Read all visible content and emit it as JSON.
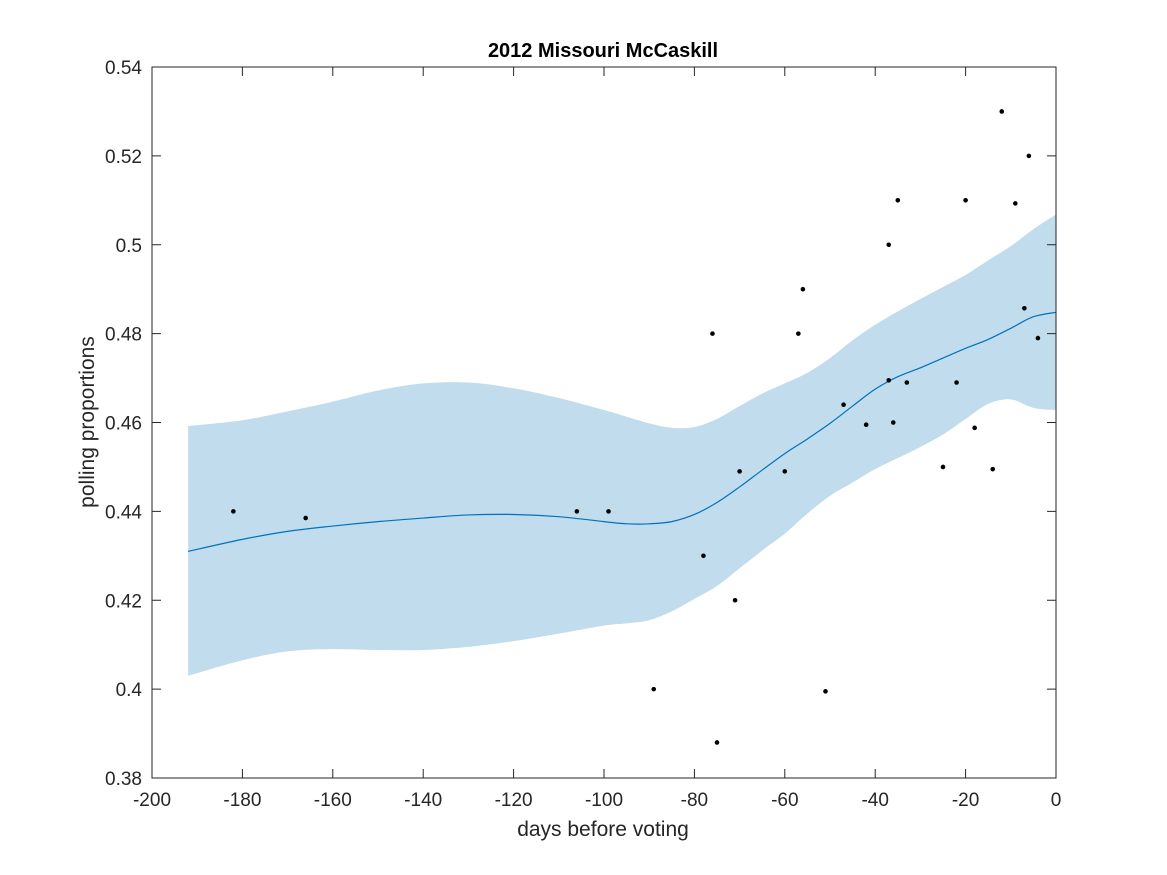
{
  "chart_data": {
    "type": "scatter",
    "title": "2012 Missouri McCaskill",
    "xlabel": "days before voting",
    "ylabel": "polling proportions",
    "xlim": [
      -200,
      0
    ],
    "ylim": [
      0.38,
      0.54
    ],
    "xticks": [
      -200,
      -180,
      -160,
      -140,
      -120,
      -100,
      -80,
      -60,
      -40,
      -20,
      0
    ],
    "yticks": [
      0.38,
      0.4,
      0.42,
      0.44,
      0.46,
      0.48,
      0.5,
      0.52,
      0.54
    ],
    "xtick_labels": [
      "-200",
      "-180",
      "-160",
      "-140",
      "-120",
      "-100",
      "-80",
      "-60",
      "-40",
      "-20",
      "0"
    ],
    "ytick_labels": [
      "0.38",
      "0.4",
      "0.42",
      "0.44",
      "0.46",
      "0.48",
      "0.5",
      "0.52",
      "0.54"
    ],
    "grid": false,
    "colors": {
      "band": "#c1dcec",
      "line": "#0072bd",
      "points": "#000000",
      "axes": "#262626"
    },
    "polls": [
      {
        "x": -182,
        "y": 0.44
      },
      {
        "x": -166,
        "y": 0.4385
      },
      {
        "x": -106,
        "y": 0.44
      },
      {
        "x": -99,
        "y": 0.44
      },
      {
        "x": -89,
        "y": 0.4
      },
      {
        "x": -78,
        "y": 0.43
      },
      {
        "x": -76,
        "y": 0.48
      },
      {
        "x": -75,
        "y": 0.388
      },
      {
        "x": -71,
        "y": 0.42
      },
      {
        "x": -70,
        "y": 0.449
      },
      {
        "x": -60,
        "y": 0.449
      },
      {
        "x": -57,
        "y": 0.48
      },
      {
        "x": -56,
        "y": 0.49
      },
      {
        "x": -51,
        "y": 0.3995
      },
      {
        "x": -47,
        "y": 0.464
      },
      {
        "x": -42,
        "y": 0.4595
      },
      {
        "x": -37,
        "y": 0.5
      },
      {
        "x": -37,
        "y": 0.4695
      },
      {
        "x": -36,
        "y": 0.46
      },
      {
        "x": -35,
        "y": 0.51
      },
      {
        "x": -33,
        "y": 0.469
      },
      {
        "x": -25,
        "y": 0.45
      },
      {
        "x": -22,
        "y": 0.469
      },
      {
        "x": -20,
        "y": 0.51
      },
      {
        "x": -18,
        "y": 0.4588
      },
      {
        "x": -14,
        "y": 0.4495
      },
      {
        "x": -12,
        "y": 0.53
      },
      {
        "x": -9,
        "y": 0.5093
      },
      {
        "x": -7,
        "y": 0.4857
      },
      {
        "x": -6,
        "y": 0.52
      },
      {
        "x": -4,
        "y": 0.479
      }
    ],
    "mean": {
      "x": [
        -192,
        -180,
        -170,
        -160,
        -150,
        -140,
        -130,
        -120,
        -110,
        -100,
        -95,
        -90,
        -85,
        -80,
        -75,
        -70,
        -65,
        -60,
        -55,
        -50,
        -45,
        -40,
        -35,
        -30,
        -25,
        -20,
        -15,
        -10,
        -5,
        0
      ],
      "y": [
        0.431,
        0.4337,
        0.4355,
        0.4367,
        0.4377,
        0.4385,
        0.4392,
        0.4393,
        0.4388,
        0.4377,
        0.4372,
        0.4372,
        0.4377,
        0.4393,
        0.442,
        0.4455,
        0.4493,
        0.453,
        0.4563,
        0.4598,
        0.4637,
        0.4675,
        0.4703,
        0.4723,
        0.4745,
        0.4767,
        0.4787,
        0.4812,
        0.4838,
        0.4848
      ]
    },
    "upper": {
      "x": [
        -192,
        -180,
        -170,
        -160,
        -150,
        -140,
        -130,
        -120,
        -110,
        -100,
        -95,
        -90,
        -85,
        -80,
        -75,
        -70,
        -65,
        -60,
        -55,
        -50,
        -45,
        -40,
        -35,
        -30,
        -25,
        -20,
        -15,
        -10,
        -5,
        0
      ],
      "y": [
        0.4592,
        0.4605,
        0.4625,
        0.4647,
        0.4672,
        0.4688,
        0.469,
        0.4677,
        0.4655,
        0.4628,
        0.4613,
        0.4598,
        0.4588,
        0.459,
        0.4608,
        0.4637,
        0.4665,
        0.4688,
        0.4712,
        0.4745,
        0.4785,
        0.482,
        0.485,
        0.4878,
        0.4905,
        0.4932,
        0.4965,
        0.4997,
        0.5035,
        0.5068
      ]
    },
    "lower": {
      "x": [
        -192,
        -180,
        -170,
        -160,
        -150,
        -140,
        -130,
        -120,
        -110,
        -100,
        -95,
        -90,
        -85,
        -80,
        -75,
        -70,
        -65,
        -60,
        -55,
        -50,
        -45,
        -40,
        -35,
        -30,
        -25,
        -20,
        -15,
        -10,
        -5,
        0
      ],
      "y": [
        0.403,
        0.4065,
        0.4085,
        0.409,
        0.4088,
        0.4088,
        0.4095,
        0.4108,
        0.4125,
        0.4143,
        0.4148,
        0.4155,
        0.4175,
        0.4203,
        0.4232,
        0.4272,
        0.4312,
        0.435,
        0.4395,
        0.4435,
        0.4465,
        0.4495,
        0.452,
        0.4545,
        0.4573,
        0.4608,
        0.4642,
        0.4652,
        0.4633,
        0.4628
      ]
    }
  }
}
